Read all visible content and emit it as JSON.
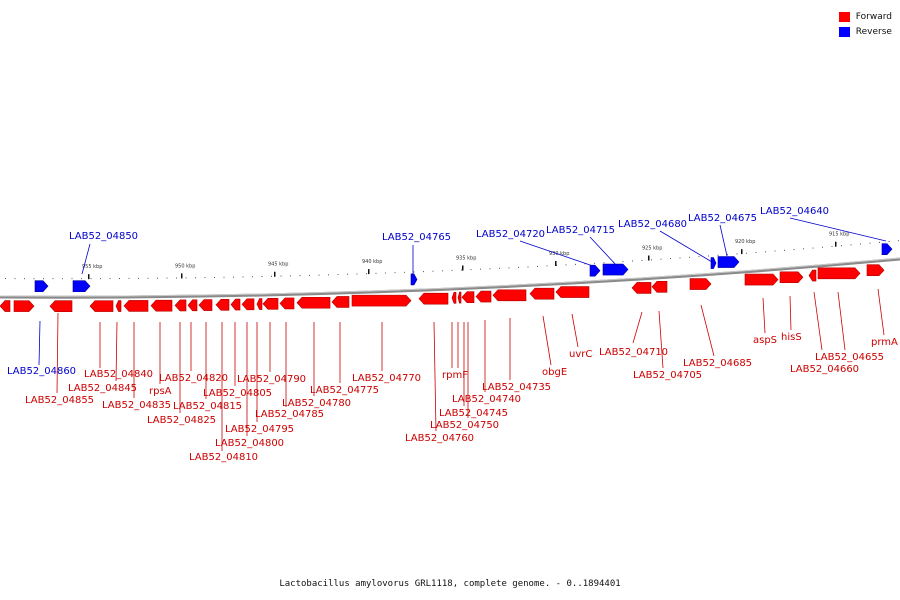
{
  "legend": {
    "forward_label": "Forward",
    "reverse_label": "Reverse",
    "forward_color": "#ff0000",
    "reverse_color": "#0000ff"
  },
  "caption": "Lactobacillus amylovorus GRL1118, complete genome. - 0..1894401",
  "scale_ticks": [
    "955 kbp",
    "950 kbp",
    "945 kbp",
    "940 kbp",
    "935 kbp",
    "930 kbp",
    "925 kbp",
    "920 kbp",
    "915 kbp"
  ],
  "reverse_labels": [
    "LAB52_04850",
    "LAB52_04765",
    "LAB52_04720",
    "LAB52_04715",
    "LAB52_04680",
    "LAB52_04675",
    "LAB52_04640",
    "LAB52_04860"
  ],
  "forward_labels": [
    "LAB52_04855",
    "LAB52_04840",
    "LAB52_04845",
    "LAB52_04835",
    "rpsA",
    "LAB52_04825",
    "LAB52_04820",
    "LAB52_04815",
    "LAB52_04805",
    "LAB52_04810",
    "LAB52_04800",
    "LAB52_04795",
    "LAB52_04790",
    "LAB52_04785",
    "LAB52_04780",
    "LAB52_04775",
    "LAB52_04770",
    "LAB52_04760",
    "LAB52_04745",
    "LAB52_04750",
    "rpmF",
    "LAB52_04740",
    "LAB52_04735",
    "obgE",
    "uvrC",
    "LAB52_04710",
    "LAB52_04705",
    "LAB52_04685",
    "aspS",
    "hisS",
    "LAB52_04655",
    "LAB52_04660",
    "prmA"
  ]
}
